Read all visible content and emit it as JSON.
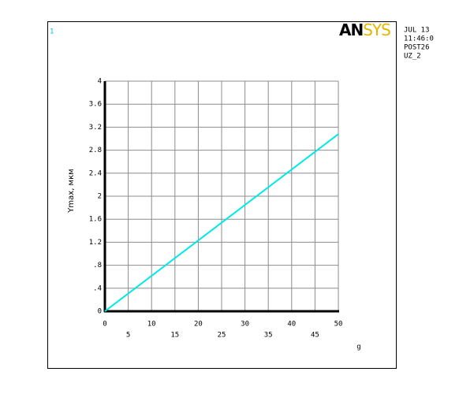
{
  "chart_data": {
    "type": "line",
    "window_number": "1",
    "logo": [
      "AN",
      "SYS"
    ],
    "info": [
      "JUL 13",
      "11:46:0",
      "POST26",
      "UZ_2"
    ],
    "ylabel": "Ymax, мкм",
    "xlabel": "g",
    "x": [
      0,
      50
    ],
    "series": [
      {
        "name": "UZ_2",
        "color": "#00e8e8",
        "values": [
          0,
          3.08
        ]
      }
    ],
    "xlim": [
      0,
      50
    ],
    "xticks": [
      0,
      5,
      10,
      15,
      20,
      25,
      30,
      35,
      40,
      45,
      50
    ],
    "ylim": [
      0,
      4
    ],
    "yticks": [
      0,
      {
        "value": 0.4,
        "label": ".4"
      },
      {
        "value": 0.8,
        "label": ".8"
      },
      1.2,
      1.6,
      2,
      2.4,
      2.8,
      3.2,
      3.6,
      4
    ],
    "grid": true
  }
}
